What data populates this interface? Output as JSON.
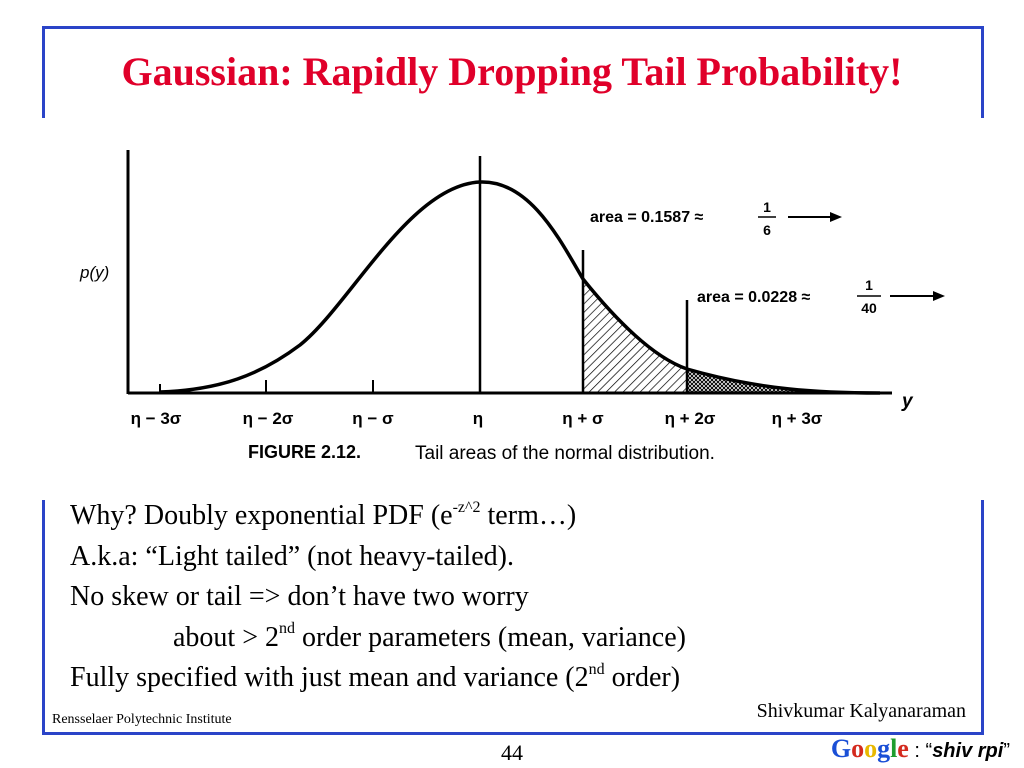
{
  "slide": {
    "title": "Gaussian: Rapidly Dropping Tail Probability!",
    "figure": {
      "y_axis_label": "p(y)",
      "x_axis_label": "y",
      "tick_labels": [
        "η − 3σ",
        "η − 2σ",
        "η − σ",
        "η",
        "η + σ",
        "η + 2σ",
        "η + 3σ"
      ],
      "annotation_1": {
        "text": "area = 0.1587 ≈",
        "num": "1",
        "den": "6"
      },
      "annotation_2": {
        "text": "area = 0.0228 ≈",
        "num": "1",
        "den": "40"
      },
      "caption_label": "FIGURE 2.12.",
      "caption_text": "Tail areas of the normal distribution."
    },
    "bullets": {
      "line1_a": "Why? Doubly exponential PDF (e",
      "line1_sup": "-z^2",
      "line1_b": " term…)",
      "line2": "A.k.a: “Light tailed” (not heavy-tailed).",
      "line3": "No skew or tail => don’t have two worry",
      "line4_a": "about > 2",
      "line4_sup": "nd",
      "line4_b": " order parameters (mean, variance)",
      "line5_a": "Fully specified with just mean and variance (2",
      "line5_sup": "nd",
      "line5_b": " order)"
    },
    "footer": {
      "institution": "Rensselaer Polytechnic Institute",
      "author": "Shivkumar Kalyanaraman",
      "page_number": "44",
      "google_logo": "Google",
      "google_sep": " : “",
      "google_query": "shiv rpi",
      "google_end": "”"
    },
    "colors": {
      "title": "#e0002a",
      "frame": "#2a44c8"
    }
  }
}
